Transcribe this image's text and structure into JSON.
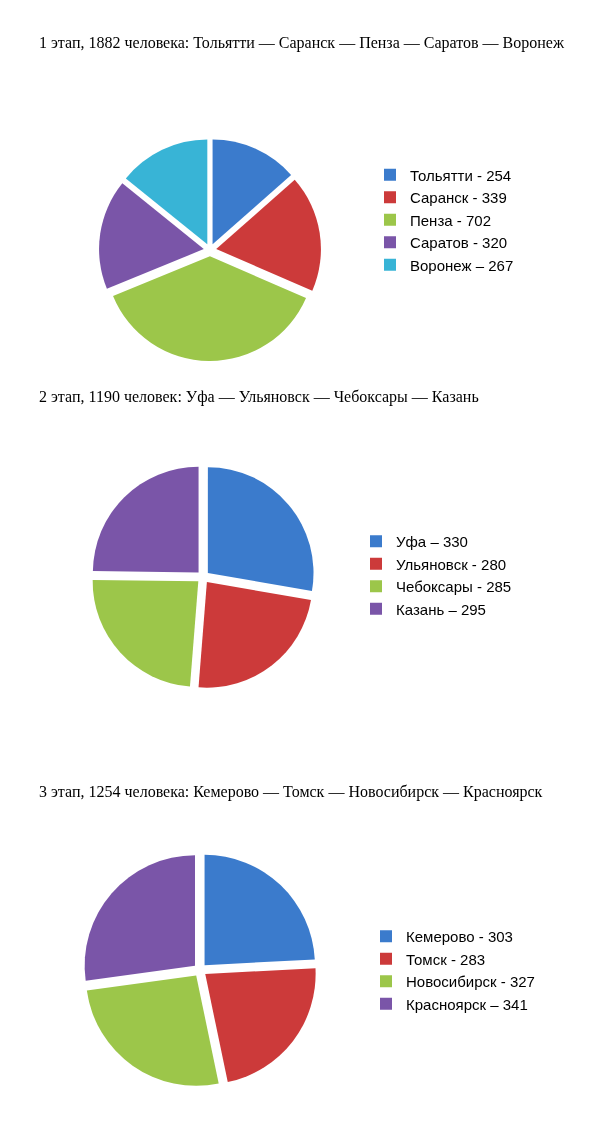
{
  "chart_data": [
    {
      "type": "pie",
      "title": "1 этап, 1882 человека: Тольятти — Саранск — Пенза — Саратов — Воронеж",
      "categories": [
        "Тольятти -",
        "Саранск -",
        "Пенза -",
        "Саратов -",
        "Воронеж –"
      ],
      "values": [
        254,
        339,
        702,
        320,
        267
      ],
      "value_labels": [
        "254",
        "339",
        "702",
        "320",
        "267"
      ],
      "colors": [
        "#3b7bcc",
        "#cc3a3a",
        "#9cc64a",
        "#7a55a8",
        "#38b4d6"
      ],
      "legend": "right"
    },
    {
      "type": "pie",
      "title": "2 этап, 1190 человек: Уфа — Ульяновск — Чебоксары — Казань",
      "categories": [
        "Уфа –",
        "Ульяновск -",
        "Чебоксары -",
        "Казань –"
      ],
      "values": [
        330,
        280,
        285,
        295
      ],
      "value_labels": [
        "330",
        "280",
        "285",
        "295"
      ],
      "colors": [
        "#3b7bcc",
        "#cc3a3a",
        "#9cc64a",
        "#7a55a8"
      ],
      "legend": "right"
    },
    {
      "type": "pie",
      "title": "3 этап, 1254 человека: Кемерово — Томск — Новосибирск — Красноярск",
      "categories": [
        "Кемерово -",
        "Томск -",
        "Новосибирск -",
        "Красноярск –"
      ],
      "values": [
        303,
        283,
        327,
        341
      ],
      "value_labels": [
        "303",
        "283",
        "327",
        "341"
      ],
      "colors": [
        "#3b7bcc",
        "#cc3a3a",
        "#9cc64a",
        "#7a55a8"
      ],
      "legend": "right"
    }
  ]
}
